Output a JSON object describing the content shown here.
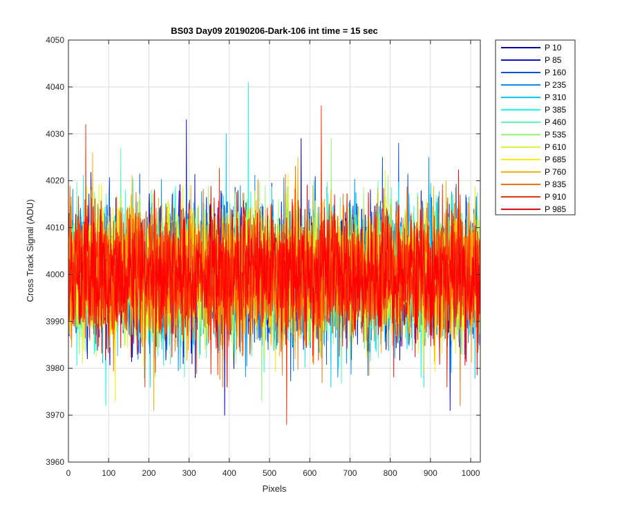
{
  "chart_data": {
    "type": "line",
    "title": "BS03 Day09 20190206-Dark-106 int time = 15 sec",
    "xlabel": "Pixels",
    "ylabel": "Cross Track Signal (ADU)",
    "xlim": [
      0,
      1024
    ],
    "ylim": [
      3960,
      4050
    ],
    "xticks": [
      0,
      100,
      200,
      300,
      400,
      500,
      600,
      700,
      800,
      900,
      1000
    ],
    "yticks": [
      3960,
      3970,
      3980,
      3990,
      4000,
      4010,
      4020,
      4030,
      4040,
      4050
    ],
    "grid": true,
    "legend_position": "outside-right",
    "noise": {
      "mean": 4000,
      "std": 7,
      "num_points": 1024
    },
    "series": [
      {
        "name": "P 10",
        "color": "#0000BF",
        "peaks": [
          {
            "x": 578,
            "y": 4029
          }
        ],
        "troughs": [
          {
            "x": 388,
            "y": 3970
          }
        ]
      },
      {
        "name": "P 85",
        "color": "#0010EF",
        "peaks": [
          {
            "x": 293,
            "y": 4033
          }
        ],
        "troughs": [
          {
            "x": 948,
            "y": 3971
          }
        ]
      },
      {
        "name": "P 160",
        "color": "#0050FF",
        "peaks": [
          {
            "x": 820,
            "y": 4028
          }
        ],
        "troughs": []
      },
      {
        "name": "P 235",
        "color": "#0090FF",
        "peaks": [],
        "troughs": []
      },
      {
        "name": "P 310",
        "color": "#00D0FF",
        "peaks": [
          {
            "x": 392,
            "y": 4030
          }
        ],
        "troughs": []
      },
      {
        "name": "P 385",
        "color": "#10FFEF",
        "peaks": [
          {
            "x": 447,
            "y": 4041
          }
        ],
        "troughs": [
          {
            "x": 93,
            "y": 3972
          }
        ]
      },
      {
        "name": "P 460",
        "color": "#50FFAF",
        "peaks": [
          {
            "x": 130,
            "y": 4027
          }
        ],
        "troughs": []
      },
      {
        "name": "P 535",
        "color": "#90FF6F",
        "peaks": [
          {
            "x": 653,
            "y": 4029
          }
        ],
        "troughs": [
          {
            "x": 480,
            "y": 3973
          }
        ]
      },
      {
        "name": "P 610",
        "color": "#D0FF2F",
        "peaks": [],
        "troughs": []
      },
      {
        "name": "P 685",
        "color": "#FFEF00",
        "peaks": [],
        "troughs": [
          {
            "x": 116,
            "y": 3973
          }
        ]
      },
      {
        "name": "P 760",
        "color": "#FFAF00",
        "peaks": [
          {
            "x": 60,
            "y": 4026
          }
        ],
        "troughs": [
          {
            "x": 212,
            "y": 3971
          }
        ]
      },
      {
        "name": "P 835",
        "color": "#FF6F00",
        "peaks": [],
        "troughs": [
          {
            "x": 973,
            "y": 3972
          }
        ]
      },
      {
        "name": "P 910",
        "color": "#FF3000",
        "peaks": [
          {
            "x": 43,
            "y": 4032
          },
          {
            "x": 628,
            "y": 4036
          }
        ],
        "troughs": [
          {
            "x": 542,
            "y": 3968
          }
        ]
      },
      {
        "name": "P 985",
        "color": "#FF0000",
        "peaks": [],
        "troughs": []
      }
    ]
  }
}
